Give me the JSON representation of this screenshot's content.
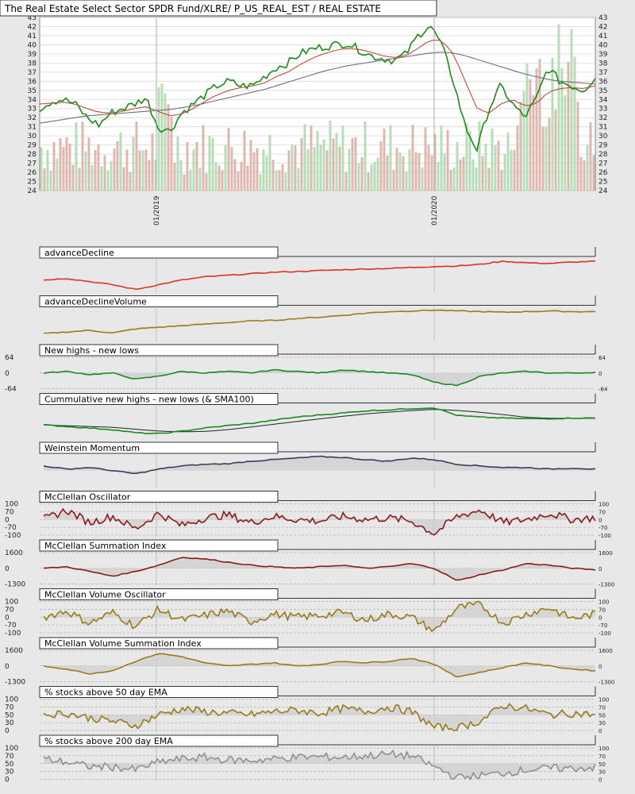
{
  "chart_data": {
    "type": "line",
    "title": "The Real Estate Select Sector SPDR Fund/XLRE/ P_US_REAL_EST / REAL ESTATE",
    "main": {
      "ylim": [
        24,
        43
      ],
      "yticks": [
        24,
        25,
        26,
        27,
        28,
        29,
        30,
        31,
        32,
        33,
        34,
        35,
        36,
        37,
        38,
        39,
        40,
        41,
        42,
        43
      ],
      "xticks": [
        "01/2019",
        "01/2020"
      ],
      "grid": true,
      "series": [
        {
          "key": "price",
          "color": "#1a8a1a",
          "values": [
            33,
            33.8,
            34,
            33.5,
            32,
            31.2,
            32.5,
            33,
            33.5,
            34.2,
            31,
            30.5,
            32.5,
            33.5,
            34.5,
            35.5,
            36,
            35.5,
            35.5,
            36.5,
            37.5,
            38,
            39,
            39.5,
            39.8,
            40,
            40.2,
            39.5,
            38.8,
            38.5,
            38.3,
            39,
            41,
            42.2,
            40,
            36,
            31,
            28.5,
            33,
            35.5,
            33.5,
            32,
            34,
            37.5,
            36,
            35.5,
            35,
            36.5
          ]
        },
        {
          "key": "sma50",
          "color": "#b85030",
          "values": [
            33.5,
            33.6,
            33.7,
            33.5,
            33,
            32.6,
            32.5,
            32.7,
            33,
            33.2,
            32.7,
            32.2,
            32.4,
            33,
            33.8,
            34.5,
            35,
            35.3,
            35.5,
            35.8,
            36.5,
            37,
            37.8,
            38.5,
            39,
            39.4,
            39.6,
            39.5,
            39.2,
            38.8,
            38.6,
            38.8,
            39.6,
            40.5,
            40.5,
            39,
            36,
            33,
            32.5,
            33.5,
            34,
            33.3,
            33.5,
            34.8,
            35.2,
            35.3,
            35.2,
            35.5
          ]
        },
        {
          "key": "sma200",
          "color": "#707070",
          "values": [
            31.4,
            31.6,
            31.8,
            32,
            32.2,
            32.3,
            32.4,
            32.5,
            32.6,
            32.7,
            32.8,
            32.9,
            33.1,
            33.3,
            33.6,
            33.9,
            34.2,
            34.5,
            34.8,
            35.1,
            35.5,
            35.9,
            36.3,
            36.7,
            37.1,
            37.4,
            37.7,
            37.9,
            38.1,
            38.3,
            38.5,
            38.7,
            38.9,
            39.1,
            39.2,
            39.1,
            38.8,
            38.4,
            38,
            37.6,
            37.2,
            36.8,
            36.5,
            36.2,
            36,
            35.9,
            35.8,
            35.7
          ]
        }
      ]
    },
    "panels": [
      {
        "label": "advanceDecline",
        "color": "#e03020",
        "ticks": [],
        "values": [
          0.35,
          0.4,
          0.3,
          0.2,
          0.05,
          0.2,
          0.35,
          0.45,
          0.5,
          0.55,
          0.6,
          0.62,
          0.65,
          0.68,
          0.7,
          0.72,
          0.75,
          0.78,
          0.8,
          0.85,
          0.95,
          0.9,
          0.88,
          0.92,
          0.95
        ]
      },
      {
        "label": "advanceDeclineVolume",
        "color": "#9a7a1a",
        "ticks": [],
        "values": [
          0.2,
          0.25,
          0.3,
          0.22,
          0.35,
          0.4,
          0.45,
          0.5,
          0.55,
          0.6,
          0.62,
          0.68,
          0.72,
          0.78,
          0.85,
          0.9,
          0.92,
          0.95,
          0.92,
          0.9,
          0.88,
          0.9,
          0.92,
          0.9,
          0.9
        ]
      },
      {
        "label": "New highs - new lows",
        "color": "#1a8a1a",
        "ticks": [
          "64",
          "0",
          "-64"
        ],
        "fill": true,
        "values": [
          0.5,
          0.55,
          0.45,
          0.5,
          0.3,
          0.4,
          0.55,
          0.5,
          0.55,
          0.5,
          0.6,
          0.55,
          0.5,
          0.6,
          0.55,
          0.5,
          0.45,
          0.2,
          0.1,
          0.4,
          0.5,
          0.55,
          0.5,
          0.5,
          0.52
        ]
      },
      {
        "label": "Cummulative new highs - new lows (& SMA100)",
        "color": "#1a8a1a",
        "ticks": [],
        "sma": true,
        "values": [
          0.4,
          0.35,
          0.3,
          0.25,
          0.15,
          0.12,
          0.2,
          0.3,
          0.38,
          0.45,
          0.55,
          0.65,
          0.72,
          0.78,
          0.85,
          0.88,
          0.92,
          0.95,
          0.7,
          0.65,
          0.62,
          0.6,
          0.6,
          0.62,
          0.62
        ]
      },
      {
        "label": "Weinstein Momentum",
        "color": "#30405a",
        "ticks": [],
        "fill": true,
        "values": [
          0.65,
          0.55,
          0.6,
          0.5,
          0.4,
          0.55,
          0.65,
          0.7,
          0.72,
          0.8,
          0.85,
          0.9,
          0.95,
          0.92,
          0.85,
          0.8,
          0.9,
          0.85,
          0.7,
          0.65,
          0.6,
          0.6,
          0.55,
          0.58,
          0.55
        ]
      },
      {
        "label": "McClellan Oscillator",
        "color": "#8a1a1a",
        "ticks": [
          "100",
          "70",
          "0",
          "-70",
          "-100"
        ],
        "dense": true,
        "fill": true,
        "values": [
          0.5,
          0.8,
          0.4,
          0.6,
          0.2,
          0.7,
          0.3,
          0.55,
          0.65,
          0.4,
          0.6,
          0.5,
          0.45,
          0.6,
          0.5,
          0.55,
          0.45,
          0.05,
          0.6,
          0.8,
          0.4,
          0.5,
          0.7,
          0.5,
          0.55
        ]
      },
      {
        "label": "McClellan Summation Index",
        "color": "#8a1a1a",
        "ticks": [
          "1600",
          "0",
          "-1300"
        ],
        "fill": true,
        "values": [
          0.5,
          0.55,
          0.4,
          0.25,
          0.4,
          0.6,
          0.85,
          0.8,
          0.7,
          0.6,
          0.55,
          0.5,
          0.55,
          0.6,
          0.5,
          0.55,
          0.65,
          0.5,
          0.1,
          0.3,
          0.45,
          0.65,
          0.6,
          0.5,
          0.45
        ]
      },
      {
        "label": "McClellan Volume Oscillator",
        "color": "#9a7a1a",
        "ticks": [
          "100",
          "70",
          "0",
          "-70",
          "-100"
        ],
        "dense": true,
        "fill": true,
        "values": [
          0.5,
          0.7,
          0.3,
          0.65,
          0.2,
          0.75,
          0.4,
          0.55,
          0.7,
          0.35,
          0.6,
          0.5,
          0.55,
          0.65,
          0.4,
          0.6,
          0.5,
          0.05,
          0.8,
          0.9,
          0.3,
          0.6,
          0.8,
          0.45,
          0.6
        ]
      },
      {
        "label": "McClellan Volume Summation Index",
        "color": "#9a7a1a",
        "ticks": [
          "1600",
          "0",
          "-1300"
        ],
        "fill": true,
        "values": [
          0.5,
          0.4,
          0.25,
          0.35,
          0.65,
          0.9,
          0.8,
          0.6,
          0.5,
          0.55,
          0.6,
          0.5,
          0.55,
          0.65,
          0.6,
          0.65,
          0.75,
          0.55,
          0.15,
          0.3,
          0.45,
          0.6,
          0.5,
          0.4,
          0.35
        ]
      },
      {
        "label": "% stocks above 50 day EMA",
        "color": "#9a7a1a",
        "ticks": [
          "100",
          "70",
          "50",
          "30",
          "0"
        ],
        "dense": true,
        "fill": true,
        "values": [
          0.5,
          0.55,
          0.4,
          0.3,
          0.15,
          0.5,
          0.7,
          0.6,
          0.55,
          0.5,
          0.6,
          0.65,
          0.55,
          0.7,
          0.6,
          0.75,
          0.6,
          0.1,
          0.08,
          0.3,
          0.8,
          0.7,
          0.5,
          0.55,
          0.5
        ]
      },
      {
        "label": "% stocks above 200 day EMA",
        "color": "#909090",
        "ticks": [
          "100",
          "70",
          "50",
          "30",
          "0"
        ],
        "dense": true,
        "fill": true,
        "values": [
          0.65,
          0.55,
          0.4,
          0.4,
          0.3,
          0.55,
          0.65,
          0.7,
          0.62,
          0.6,
          0.65,
          0.7,
          0.72,
          0.7,
          0.75,
          0.8,
          0.75,
          0.4,
          0.05,
          0.12,
          0.2,
          0.3,
          0.35,
          0.35,
          0.38
        ]
      }
    ]
  }
}
